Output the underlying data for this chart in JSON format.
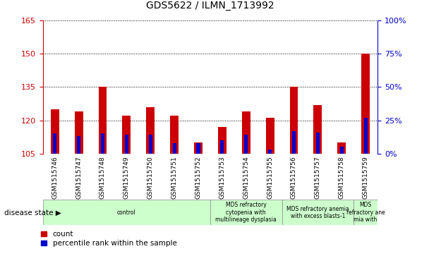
{
  "title": "GDS5622 / ILMN_1713992",
  "samples": [
    "GSM1515746",
    "GSM1515747",
    "GSM1515748",
    "GSM1515749",
    "GSM1515750",
    "GSM1515751",
    "GSM1515752",
    "GSM1515753",
    "GSM1515754",
    "GSM1515755",
    "GSM1515756",
    "GSM1515757",
    "GSM1515758",
    "GSM1515759"
  ],
  "count_values": [
    125,
    124,
    135,
    122,
    126,
    122,
    110,
    117,
    124,
    121,
    135,
    127,
    110,
    150
  ],
  "percentile_values": [
    15,
    13,
    15,
    14,
    14,
    8,
    8,
    10,
    14,
    3,
    17,
    16,
    5,
    27
  ],
  "bar_base": 105,
  "ylim_left": [
    105,
    165
  ],
  "ylim_right": [
    0,
    100
  ],
  "yticks_left": [
    105,
    120,
    135,
    150,
    165
  ],
  "yticks_right": [
    0,
    25,
    50,
    75,
    100
  ],
  "count_color": "#cc0000",
  "percentile_color": "#0000cc",
  "bar_width": 0.35,
  "blue_bar_width": 0.15,
  "disease_groups": [
    {
      "label": "control",
      "start": 0,
      "end": 7
    },
    {
      "label": "MDS refractory\ncytopenia with\nmultilineage dysplasia",
      "start": 7,
      "end": 10
    },
    {
      "label": "MDS refractory anemia\nwith excess blasts-1",
      "start": 10,
      "end": 13
    },
    {
      "label": "MDS\nrefractory ane\nmia with",
      "start": 13,
      "end": 14
    }
  ],
  "disease_state_label": "disease state",
  "legend_count": "count",
  "legend_pct": "percentile rank within the sample",
  "light_green": "#ccffcc",
  "gray_tickbg": "#d0d0d0",
  "background_color": "#ffffff"
}
